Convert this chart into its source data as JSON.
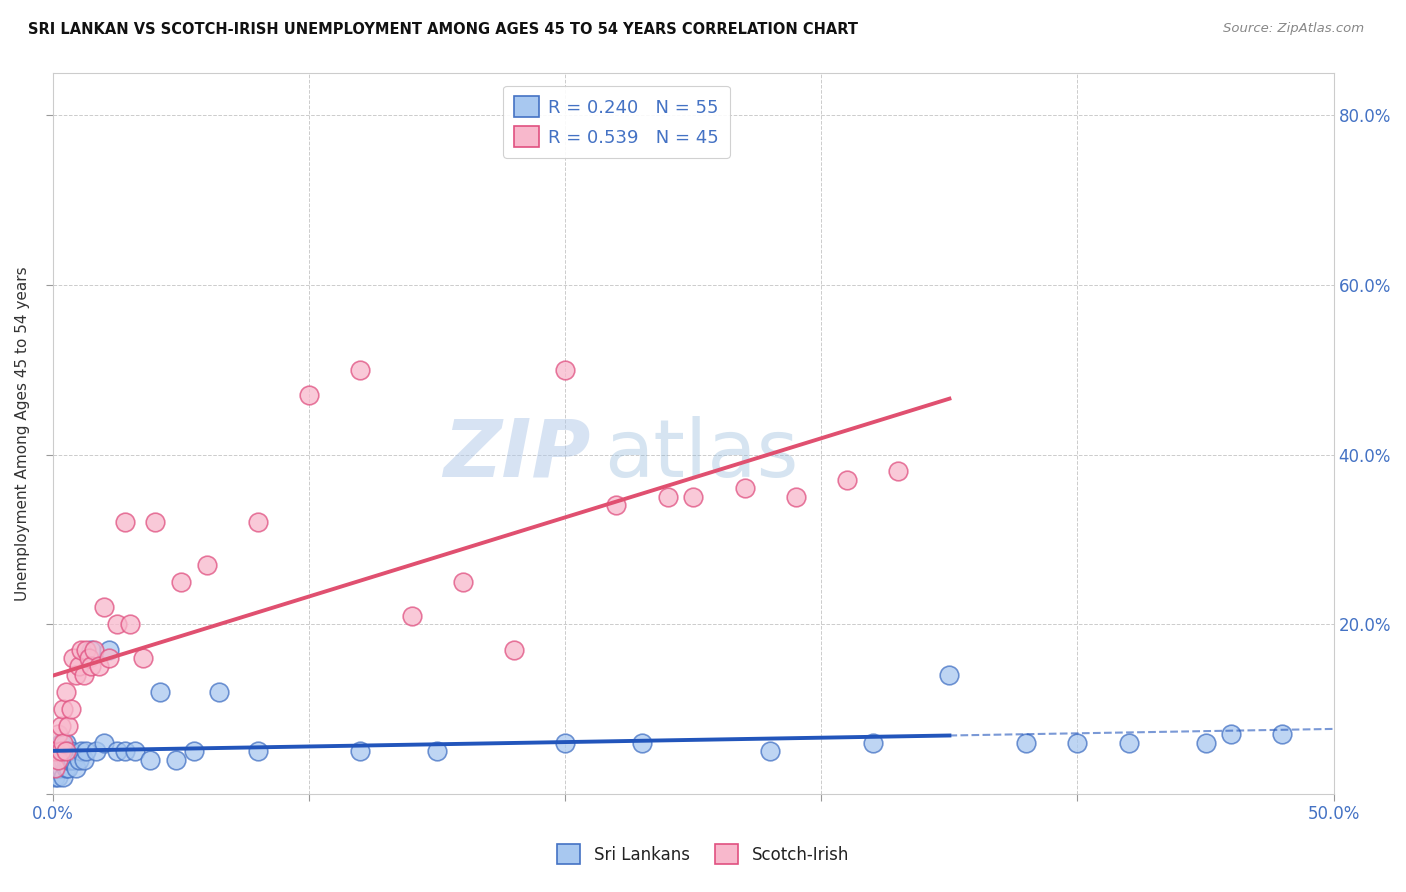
{
  "title": "SRI LANKAN VS SCOTCH-IRISH UNEMPLOYMENT AMONG AGES 45 TO 54 YEARS CORRELATION CHART",
  "source": "Source: ZipAtlas.com",
  "ylabel": "Unemployment Among Ages 45 to 54 years",
  "xlabel": "",
  "xlim": [
    0.0,
    0.5
  ],
  "ylim": [
    0.0,
    0.85
  ],
  "xticks": [
    0.0,
    0.1,
    0.2,
    0.3,
    0.4,
    0.5
  ],
  "yticks": [
    0.0,
    0.2,
    0.4,
    0.6,
    0.8
  ],
  "xtick_labels_shown": [
    "0.0%",
    "",
    "",
    "",
    "",
    "50.0%"
  ],
  "ytick_labels": [
    "",
    "20.0%",
    "40.0%",
    "60.0%",
    "80.0%"
  ],
  "sri_lankan_color": "#a8c8f0",
  "scotch_irish_color": "#f8b8cc",
  "sri_lankan_edge_color": "#4472C4",
  "scotch_irish_edge_color": "#e05080",
  "sri_lankan_line_color": "#2255bb",
  "scotch_irish_line_color": "#e05070",
  "sri_lankan_R": 0.24,
  "sri_lankan_N": 55,
  "scotch_irish_R": 0.539,
  "scotch_irish_N": 45,
  "watermark_zip": "ZIP",
  "watermark_atlas": "atlas",
  "legend_label_1": "Sri Lankans",
  "legend_label_2": "Scotch-Irish",
  "sri_lankan_x": [
    0.001,
    0.001,
    0.001,
    0.001,
    0.002,
    0.002,
    0.002,
    0.002,
    0.003,
    0.003,
    0.003,
    0.003,
    0.004,
    0.004,
    0.004,
    0.005,
    0.005,
    0.005,
    0.006,
    0.006,
    0.006,
    0.007,
    0.007,
    0.008,
    0.009,
    0.01,
    0.011,
    0.012,
    0.013,
    0.015,
    0.017,
    0.02,
    0.022,
    0.025,
    0.028,
    0.032,
    0.038,
    0.042,
    0.048,
    0.055,
    0.065,
    0.08,
    0.12,
    0.15,
    0.2,
    0.23,
    0.28,
    0.32,
    0.35,
    0.38,
    0.4,
    0.42,
    0.45,
    0.46,
    0.48
  ],
  "sri_lankan_y": [
    0.02,
    0.03,
    0.04,
    0.05,
    0.02,
    0.03,
    0.04,
    0.05,
    0.03,
    0.04,
    0.05,
    0.06,
    0.02,
    0.04,
    0.05,
    0.03,
    0.04,
    0.06,
    0.03,
    0.04,
    0.05,
    0.04,
    0.05,
    0.04,
    0.03,
    0.04,
    0.05,
    0.04,
    0.05,
    0.17,
    0.05,
    0.06,
    0.17,
    0.05,
    0.05,
    0.05,
    0.04,
    0.12,
    0.04,
    0.05,
    0.12,
    0.05,
    0.05,
    0.05,
    0.06,
    0.06,
    0.05,
    0.06,
    0.14,
    0.06,
    0.06,
    0.06,
    0.06,
    0.07,
    0.07
  ],
  "scotch_irish_x": [
    0.001,
    0.001,
    0.002,
    0.002,
    0.003,
    0.003,
    0.004,
    0.004,
    0.005,
    0.005,
    0.006,
    0.007,
    0.008,
    0.009,
    0.01,
    0.011,
    0.012,
    0.013,
    0.014,
    0.015,
    0.016,
    0.018,
    0.02,
    0.022,
    0.025,
    0.028,
    0.03,
    0.035,
    0.04,
    0.05,
    0.06,
    0.08,
    0.1,
    0.12,
    0.14,
    0.16,
    0.18,
    0.2,
    0.22,
    0.24,
    0.25,
    0.27,
    0.29,
    0.31,
    0.33
  ],
  "scotch_irish_y": [
    0.03,
    0.05,
    0.04,
    0.07,
    0.05,
    0.08,
    0.06,
    0.1,
    0.05,
    0.12,
    0.08,
    0.1,
    0.16,
    0.14,
    0.15,
    0.17,
    0.14,
    0.17,
    0.16,
    0.15,
    0.17,
    0.15,
    0.22,
    0.16,
    0.2,
    0.32,
    0.2,
    0.16,
    0.32,
    0.25,
    0.27,
    0.32,
    0.47,
    0.5,
    0.21,
    0.25,
    0.17,
    0.5,
    0.34,
    0.35,
    0.35,
    0.36,
    0.35,
    0.37,
    0.38
  ]
}
